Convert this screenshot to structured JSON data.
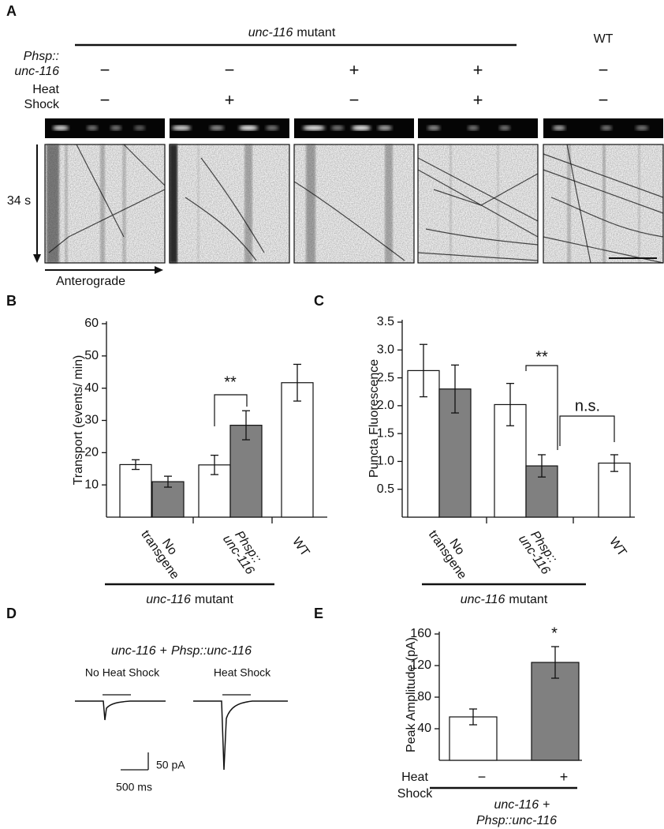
{
  "panel_labels": [
    "A",
    "B",
    "C",
    "D",
    "E"
  ],
  "panel_a": {
    "group": {
      "gene": "unc-116",
      "label": "mutant"
    },
    "wt": "WT",
    "rows": [
      {
        "label": [
          "Phsp::",
          "unc-116"
        ],
        "signs": [
          "−",
          "−",
          "+",
          "+",
          "−"
        ]
      },
      {
        "label": [
          "Heat",
          "Shock"
        ],
        "signs": [
          "−",
          "+",
          "−",
          "+",
          "−"
        ]
      }
    ],
    "time": "34 s",
    "direction": "Anterograde"
  },
  "panel_d": {
    "title": {
      "gene": "unc-116",
      "joiner": "+",
      "construct": "Phsp::unc-116"
    },
    "conditions": [
      "No Heat Shock",
      "Heat Shock"
    ],
    "scale_current": "50 pA",
    "scale_time": "500 ms"
  },
  "chart_data": [
    {
      "type": "bar",
      "ylabel": "Transport (events/ min)",
      "categories": [
        [
          "No",
          "transgene"
        ],
        [
          "Phsp::",
          "unc-116"
        ],
        [
          "WT"
        ]
      ],
      "italic": [
        false,
        true,
        false
      ],
      "series": [
        {
          "color": "#ffffff",
          "values": [
            16.3,
            16.2,
            41.7
          ],
          "errors": [
            1.5,
            3,
            5.7
          ]
        },
        {
          "color": "#808080",
          "values": [
            11,
            28.5,
            null
          ],
          "errors": [
            1.7,
            4.5,
            null
          ]
        }
      ],
      "ylim": [
        0,
        60
      ],
      "yticks": [
        10,
        20,
        30,
        40,
        50,
        60
      ],
      "significance": [
        "**"
      ],
      "group_label": {
        "gene": "unc-116",
        "label": "mutant"
      }
    },
    {
      "type": "bar",
      "ylabel": "Puncta Fluorescence",
      "categories": [
        [
          "No",
          "transgene"
        ],
        [
          "Phsp::",
          "unc-116"
        ],
        [
          "WT"
        ]
      ],
      "italic": [
        false,
        true,
        false
      ],
      "series": [
        {
          "color": "#ffffff",
          "values": [
            2.63,
            2.02,
            0.97
          ],
          "errors": [
            0.47,
            0.38,
            0.15
          ]
        },
        {
          "color": "#808080",
          "values": [
            2.3,
            0.92,
            null
          ],
          "errors": [
            0.43,
            0.2,
            null
          ]
        }
      ],
      "ylim": [
        0,
        3.5
      ],
      "yticks": [
        0.5,
        {
          "value": 1,
          "label": "1.0"
        },
        1.5,
        {
          "value": 2,
          "label": "2.0"
        },
        2.5,
        {
          "value": 3,
          "label": "3.0"
        },
        3.5
      ],
      "significance": [
        "**",
        "n.s."
      ],
      "group_label": {
        "gene": "unc-116",
        "label": "mutant"
      }
    },
    {
      "type": "bar",
      "ylabel": "Peak Amplitude (pA)",
      "categories": [
        "−",
        "+"
      ],
      "category_title": [
        "Heat",
        "Shock"
      ],
      "series": [
        {
          "colors": [
            "#ffffff",
            "#808080"
          ],
          "values": [
            55,
            124
          ],
          "errors": [
            10,
            20
          ]
        }
      ],
      "ylim": [
        0,
        160
      ],
      "yticks": [
        40,
        80,
        120,
        160
      ],
      "significance": [
        "*"
      ],
      "group_label": {
        "gene": "unc-116",
        "joiner": "+",
        "construct": "Phsp::unc-116"
      }
    }
  ]
}
